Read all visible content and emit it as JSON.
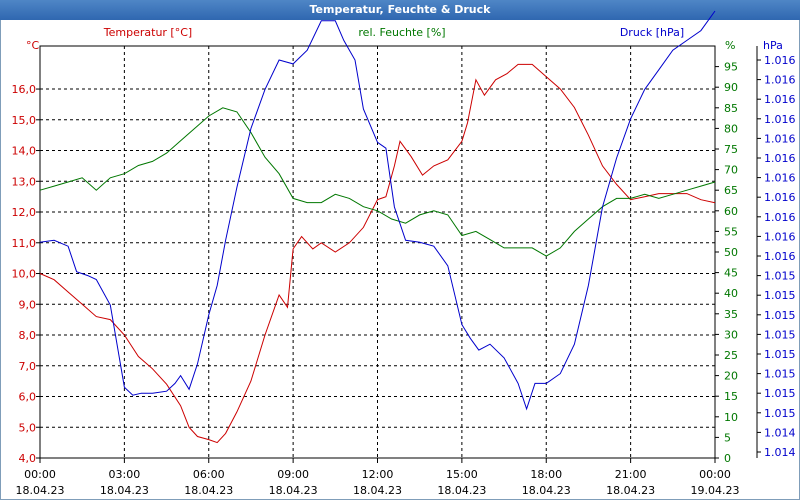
{
  "window": {
    "title": "Temperatur, Feuchte & Druck"
  },
  "chart_data": {
    "type": "line",
    "title": "Temperatur, Feuchte & Druck",
    "colors": {
      "temperature": "#cc0000",
      "humidity": "#007700",
      "pressure": "#0000cc",
      "grid": "#000000"
    },
    "x_ticks": [
      {
        "time": "00:00",
        "date": "18.04.23"
      },
      {
        "time": "03:00",
        "date": "18.04.23"
      },
      {
        "time": "06:00",
        "date": "18.04.23"
      },
      {
        "time": "09:00",
        "date": "18.04.23"
      },
      {
        "time": "12:00",
        "date": "18.04.23"
      },
      {
        "time": "15:00",
        "date": "18.04.23"
      },
      {
        "time": "18:00",
        "date": "18.04.23"
      },
      {
        "time": "21:00",
        "date": "18.04.23"
      },
      {
        "time": "00:00",
        "date": "19.04.23"
      }
    ],
    "xlim": [
      0,
      24
    ],
    "axes": {
      "temperature": {
        "label": "Temperatur [°C]",
        "unit": "°C",
        "ylim": [
          4.0,
          17.4
        ],
        "ticks": [
          "4,0",
          "5,0",
          "6,0",
          "7,0",
          "8,0",
          "9,0",
          "10,0",
          "11,0",
          "12,0",
          "13,0",
          "14,0",
          "15,0",
          "16,0"
        ]
      },
      "humidity": {
        "label": "rel. Feuchte [%]",
        "unit": "%",
        "ylim": [
          0,
          100
        ],
        "ticks": [
          "0",
          "5",
          "10",
          "15",
          "20",
          "25",
          "30",
          "35",
          "40",
          "45",
          "50",
          "55",
          "60",
          "65",
          "70",
          "75",
          "80",
          "85",
          "90",
          "95"
        ]
      },
      "pressure": {
        "label": "Druck [hPa]",
        "unit": "hPa",
        "ticks": [
          "1.014",
          "1.014",
          "1.015",
          "1.015",
          "1.015",
          "1.015",
          "1.015",
          "1.015",
          "1.015",
          "1.015",
          "1.016",
          "1.016",
          "1.016",
          "1.016",
          "1.016",
          "1.016",
          "1.016",
          "1.016",
          "1.016",
          "1.016",
          "1.016"
        ]
      }
    },
    "series": [
      {
        "name": "Temperatur",
        "axis": "temperature",
        "points": [
          [
            0,
            10.0
          ],
          [
            0.5,
            9.8
          ],
          [
            1,
            9.4
          ],
          [
            1.5,
            9.0
          ],
          [
            2,
            8.6
          ],
          [
            2.5,
            8.5
          ],
          [
            3,
            8.0
          ],
          [
            3.5,
            7.3
          ],
          [
            4,
            6.9
          ],
          [
            4.5,
            6.4
          ],
          [
            5,
            5.7
          ],
          [
            5.3,
            5.0
          ],
          [
            5.6,
            4.7
          ],
          [
            6,
            4.6
          ],
          [
            6.3,
            4.5
          ],
          [
            6.6,
            4.8
          ],
          [
            7,
            5.5
          ],
          [
            7.5,
            6.5
          ],
          [
            8,
            8.0
          ],
          [
            8.5,
            9.3
          ],
          [
            8.8,
            8.9
          ],
          [
            9,
            10.8
          ],
          [
            9.3,
            11.2
          ],
          [
            9.7,
            10.8
          ],
          [
            10,
            11.0
          ],
          [
            10.5,
            10.7
          ],
          [
            11,
            11.0
          ],
          [
            11.5,
            11.5
          ],
          [
            12,
            12.4
          ],
          [
            12.3,
            12.5
          ],
          [
            12.6,
            13.5
          ],
          [
            12.8,
            14.3
          ],
          [
            13.2,
            13.8
          ],
          [
            13.6,
            13.2
          ],
          [
            14,
            13.5
          ],
          [
            14.5,
            13.7
          ],
          [
            15,
            14.3
          ],
          [
            15.2,
            14.9
          ],
          [
            15.5,
            16.3
          ],
          [
            15.8,
            15.8
          ],
          [
            16.2,
            16.3
          ],
          [
            16.6,
            16.5
          ],
          [
            17,
            16.8
          ],
          [
            17.5,
            16.8
          ],
          [
            18,
            16.4
          ],
          [
            18.5,
            16.0
          ],
          [
            19,
            15.4
          ],
          [
            19.5,
            14.5
          ],
          [
            20,
            13.5
          ],
          [
            20.5,
            12.9
          ],
          [
            21,
            12.4
          ],
          [
            21.5,
            12.5
          ],
          [
            22,
            12.6
          ],
          [
            22.5,
            12.6
          ],
          [
            23,
            12.6
          ],
          [
            23.5,
            12.4
          ],
          [
            24,
            12.3
          ]
        ]
      },
      {
        "name": "rel. Feuchte",
        "axis": "humidity",
        "points": [
          [
            0,
            65
          ],
          [
            0.5,
            66
          ],
          [
            1,
            67
          ],
          [
            1.5,
            68
          ],
          [
            2,
            65
          ],
          [
            2.5,
            68
          ],
          [
            3,
            69
          ],
          [
            3.5,
            71
          ],
          [
            4,
            72
          ],
          [
            4.5,
            74
          ],
          [
            5,
            77
          ],
          [
            5.5,
            80
          ],
          [
            6,
            83
          ],
          [
            6.5,
            85
          ],
          [
            7,
            84
          ],
          [
            7.5,
            79
          ],
          [
            8,
            73
          ],
          [
            8.5,
            69
          ],
          [
            9,
            63
          ],
          [
            9.5,
            62
          ],
          [
            10,
            62
          ],
          [
            10.5,
            64
          ],
          [
            11,
            63
          ],
          [
            11.5,
            61
          ],
          [
            12,
            60
          ],
          [
            12.5,
            58
          ],
          [
            13,
            57
          ],
          [
            13.5,
            59
          ],
          [
            14,
            60
          ],
          [
            14.5,
            59
          ],
          [
            15,
            54
          ],
          [
            15.5,
            55
          ],
          [
            16,
            53
          ],
          [
            16.5,
            51
          ],
          [
            17,
            51
          ],
          [
            17.5,
            51
          ],
          [
            18,
            49
          ],
          [
            18.5,
            51
          ],
          [
            19,
            55
          ],
          [
            19.5,
            58
          ],
          [
            20,
            61
          ],
          [
            20.5,
            63
          ],
          [
            21,
            63
          ],
          [
            21.5,
            64
          ],
          [
            22,
            63
          ],
          [
            22.5,
            64
          ],
          [
            23,
            65
          ],
          [
            23.5,
            66
          ],
          [
            24,
            67
          ]
        ]
      },
      {
        "name": "Druck",
        "axis": "pressure",
        "points": [
          [
            0,
            10.7
          ],
          [
            0.5,
            10.8
          ],
          [
            1,
            10.5
          ],
          [
            1.3,
            9.2
          ],
          [
            1.7,
            9.0
          ],
          [
            2,
            8.8
          ],
          [
            2.5,
            7.5
          ],
          [
            3,
            3.3
          ],
          [
            3.3,
            2.9
          ],
          [
            3.6,
            3.0
          ],
          [
            4,
            3.0
          ],
          [
            4.5,
            3.1
          ],
          [
            4.8,
            3.5
          ],
          [
            5,
            3.9
          ],
          [
            5.3,
            3.2
          ],
          [
            5.6,
            4.5
          ],
          [
            6,
            7.0
          ],
          [
            6.3,
            8.5
          ],
          [
            6.6,
            10.8
          ],
          [
            7,
            13.5
          ],
          [
            7.5,
            16.5
          ],
          [
            8,
            18.5
          ],
          [
            8.5,
            20.0
          ],
          [
            9,
            19.8
          ],
          [
            9.5,
            20.5
          ],
          [
            10,
            22.0
          ],
          [
            10.5,
            22.0
          ],
          [
            10.8,
            21.0
          ],
          [
            11.2,
            20.0
          ],
          [
            11.5,
            17.5
          ],
          [
            12,
            15.8
          ],
          [
            12.3,
            15.5
          ],
          [
            12.6,
            12.5
          ],
          [
            13,
            10.8
          ],
          [
            13.5,
            10.7
          ],
          [
            14,
            10.5
          ],
          [
            14.5,
            9.5
          ],
          [
            15,
            6.5
          ],
          [
            15.3,
            5.8
          ],
          [
            15.6,
            5.2
          ],
          [
            16,
            5.5
          ],
          [
            16.5,
            4.8
          ],
          [
            17,
            3.5
          ],
          [
            17.3,
            2.2
          ],
          [
            17.6,
            3.5
          ],
          [
            18,
            3.5
          ],
          [
            18.5,
            4.0
          ],
          [
            19,
            5.5
          ],
          [
            19.5,
            8.5
          ],
          [
            20,
            12.5
          ],
          [
            20.5,
            15.0
          ],
          [
            21,
            17.0
          ],
          [
            21.5,
            18.5
          ],
          [
            22,
            19.5
          ],
          [
            22.5,
            20.5
          ],
          [
            23,
            21.0
          ],
          [
            23.5,
            21.5
          ],
          [
            24,
            22.5
          ]
        ]
      }
    ]
  }
}
